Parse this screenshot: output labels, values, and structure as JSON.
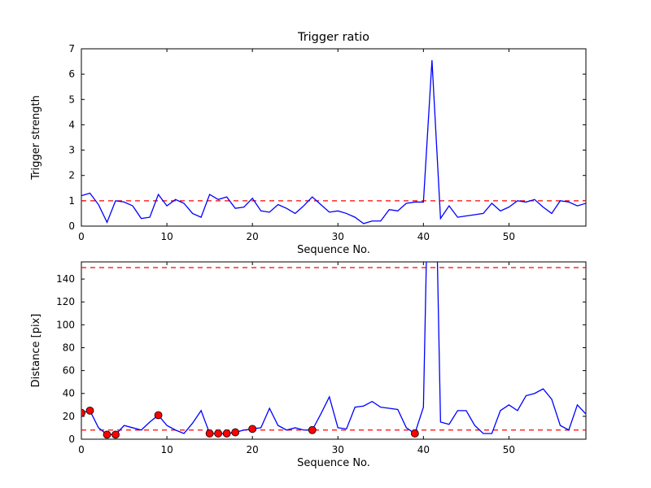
{
  "figure": {
    "background_color": "#ffffff",
    "line_color": "#0000ff",
    "threshold_color": "#ff0000",
    "marker_fill_color": "#ff0000",
    "marker_edge_color": "#000000"
  },
  "chart_data": [
    {
      "type": "line",
      "title": "Trigger ratio",
      "xlabel": "Sequence No.",
      "ylabel": "Trigger strength",
      "xlim": [
        0,
        59
      ],
      "ylim": [
        0,
        7
      ],
      "xticks": [
        0,
        10,
        20,
        30,
        40,
        50
      ],
      "yticks": [
        0,
        1,
        2,
        3,
        4,
        5,
        6,
        7
      ],
      "grid": false,
      "legend": "none",
      "threshold_lines": [
        {
          "y": 1,
          "color": "#ff0000",
          "style": "dashed"
        }
      ],
      "series": [
        {
          "name": "trigger-strength",
          "color": "#0000ff",
          "x_start": 0,
          "x_step": 1,
          "values": [
            1.2,
            1.3,
            0.85,
            0.15,
            1.0,
            0.95,
            0.8,
            0.3,
            0.35,
            1.25,
            0.8,
            1.05,
            0.9,
            0.5,
            0.35,
            1.25,
            1.05,
            1.15,
            0.7,
            0.75,
            1.1,
            0.6,
            0.55,
            0.85,
            0.7,
            0.5,
            0.8,
            1.15,
            0.85,
            0.55,
            0.6,
            0.5,
            0.35,
            0.1,
            0.2,
            0.2,
            0.65,
            0.6,
            0.9,
            0.95,
            0.95,
            6.55,
            0.3,
            0.8,
            0.35,
            0.4,
            0.45,
            0.5,
            0.9,
            0.6,
            0.75,
            1.0,
            0.95,
            1.05,
            0.75,
            0.5,
            1.0,
            0.95,
            0.8,
            0.9
          ]
        }
      ]
    },
    {
      "type": "line",
      "title": "",
      "xlabel": "Sequence No.",
      "ylabel": "Distance [pix]",
      "xlim": [
        0,
        59
      ],
      "ylim": [
        0,
        155
      ],
      "xticks": [
        0,
        10,
        20,
        30,
        40,
        50
      ],
      "yticks": [
        0,
        20,
        40,
        60,
        80,
        100,
        120,
        140
      ],
      "grid": false,
      "legend": "none",
      "threshold_lines": [
        {
          "y": 150,
          "color": "#ff0000",
          "style": "dashed"
        },
        {
          "y": 8,
          "color": "#ff0000",
          "style": "dashed"
        }
      ],
      "series": [
        {
          "name": "distance",
          "color": "#0000ff",
          "x_start": 0,
          "x_step": 1,
          "values": [
            23,
            25,
            10,
            4,
            4,
            12,
            10,
            8,
            15,
            21,
            12,
            8,
            5,
            14,
            25,
            5,
            5,
            5,
            6,
            8,
            9,
            10,
            27,
            12,
            8,
            10,
            8,
            8,
            22,
            37,
            10,
            9,
            28,
            29,
            33,
            28,
            27,
            26,
            10,
            5,
            28,
            400,
            15,
            13,
            25,
            25,
            12,
            5,
            5,
            25,
            30,
            25,
            38,
            40,
            44,
            35,
            12,
            8,
            30,
            22
          ]
        }
      ],
      "markers": {
        "name": "triggered-point",
        "color": "#ff0000",
        "edge_color": "#000000",
        "x": [
          0,
          1,
          3,
          4,
          9,
          15,
          16,
          17,
          18,
          20,
          27,
          39
        ],
        "y": [
          23,
          25,
          4,
          4,
          21,
          5,
          5,
          5,
          6,
          9,
          8,
          5
        ]
      }
    }
  ]
}
